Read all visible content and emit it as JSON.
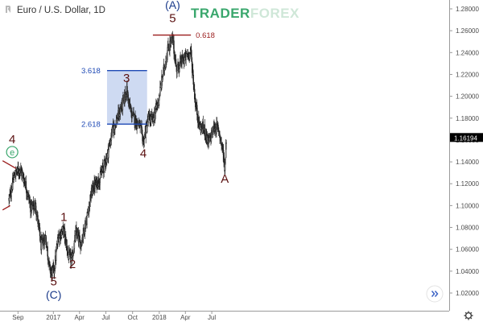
{
  "header": {
    "title": "Euro / U.S. Dollar, 1D",
    "watermark_left": "TRADER",
    "watermark_right": "FOREX"
  },
  "price_tag": "1.16194",
  "chart_data": {
    "type": "candlestick",
    "title": "Euro / U.S. Dollar, 1D",
    "y_ticks": [
      "1.28000",
      "1.26000",
      "1.24000",
      "1.22000",
      "1.20000",
      "1.18000",
      "1.16000",
      "1.14000",
      "1.12000",
      "1.10000",
      "1.08000",
      "1.06000",
      "1.04000",
      "1.02000"
    ],
    "x_ticks": [
      "Sep",
      "2017",
      "Apr",
      "Jul",
      "Oct",
      "2018",
      "Apr",
      "Jul"
    ],
    "ylim": [
      1.013,
      1.29
    ],
    "last_price": 1.16194,
    "path": [
      [
        "2016-08-01",
        1.105
      ],
      [
        "2016-08-20",
        1.128
      ],
      [
        "2016-09-08",
        1.134
      ],
      [
        "2016-09-25",
        1.122
      ],
      [
        "2016-10-15",
        1.098
      ],
      [
        "2016-11-01",
        1.1
      ],
      [
        "2016-11-20",
        1.063
      ],
      [
        "2016-12-05",
        1.072
      ],
      [
        "2016-12-20",
        1.04
      ],
      [
        "2017-01-03",
        1.04
      ],
      [
        "2017-01-18",
        1.072
      ],
      [
        "2017-02-05",
        1.078
      ],
      [
        "2017-02-22",
        1.054
      ],
      [
        "2017-03-05",
        1.05
      ],
      [
        "2017-03-20",
        1.075
      ],
      [
        "2017-04-05",
        1.065
      ],
      [
        "2017-04-25",
        1.087
      ],
      [
        "2017-05-15",
        1.115
      ],
      [
        "2017-06-10",
        1.125
      ],
      [
        "2017-07-05",
        1.145
      ],
      [
        "2017-07-25",
        1.17
      ],
      [
        "2017-08-10",
        1.18
      ],
      [
        "2017-09-01",
        1.196
      ],
      [
        "2017-09-10",
        1.206
      ],
      [
        "2017-09-25",
        1.185
      ],
      [
        "2017-10-10",
        1.178
      ],
      [
        "2017-10-26",
        1.173
      ],
      [
        "2017-11-07",
        1.158
      ],
      [
        "2017-11-25",
        1.18
      ],
      [
        "2017-12-10",
        1.178
      ],
      [
        "2017-12-28",
        1.195
      ],
      [
        "2018-01-15",
        1.222
      ],
      [
        "2018-02-01",
        1.245
      ],
      [
        "2018-02-16",
        1.252
      ],
      [
        "2018-03-01",
        1.225
      ],
      [
        "2018-03-20",
        1.232
      ],
      [
        "2018-04-10",
        1.238
      ],
      [
        "2018-04-20",
        1.24
      ],
      [
        "2018-05-05",
        1.195
      ],
      [
        "2018-05-20",
        1.172
      ],
      [
        "2018-06-05",
        1.17
      ],
      [
        "2018-06-20",
        1.157
      ],
      [
        "2018-07-10",
        1.172
      ],
      [
        "2018-07-25",
        1.17
      ],
      [
        "2018-08-08",
        1.15
      ],
      [
        "2018-08-15",
        1.135
      ],
      [
        "2018-08-20",
        1.162
      ]
    ],
    "box": {
      "x0": "2017-07-05",
      "x1": "2017-11-20",
      "top": 1.2235,
      "bottom": 1.1745
    },
    "fib_levels": [
      {
        "label": "3.618",
        "value": 1.2235
      },
      {
        "label": "2.618",
        "value": 1.1745
      },
      {
        "label": "0.618",
        "value": 1.256,
        "x0": "2017-12-10",
        "x1": "2018-04-20"
      }
    ],
    "trendline": {
      "x0": "2016-07-10",
      "y0": 1.141,
      "x1": "2016-08-25",
      "y1": 1.134
    },
    "trendline_lower": {
      "x0": "2016-07-10",
      "y0": 1.096,
      "x1": "2016-08-05",
      "y1": 1.1
    },
    "wave_labels": [
      {
        "text": "4",
        "x": "2016-08-12",
        "y": 1.157,
        "color": "dark"
      },
      {
        "text": "e",
        "x": "2016-08-12",
        "y": 1.146,
        "color": "green",
        "circled": true
      },
      {
        "text": "5",
        "x": "2017-01-02",
        "y": 1.027,
        "color": "dark"
      },
      {
        "text": "(C)",
        "x": "2017-01-02",
        "y": 1.015,
        "color": "blue"
      },
      {
        "text": "1",
        "x": "2017-02-06",
        "y": 1.086,
        "color": "dark"
      },
      {
        "text": "2",
        "x": "2017-03-08",
        "y": 1.043,
        "color": "dark"
      },
      {
        "text": "3",
        "x": "2017-09-10",
        "y": 1.213,
        "color": "dark"
      },
      {
        "text": "4",
        "x": "2017-11-07",
        "y": 1.144,
        "color": "dark"
      },
      {
        "text": "(A)",
        "x": "2018-02-16",
        "y": 1.28,
        "color": "blue"
      },
      {
        "text": "5",
        "x": "2018-02-16",
        "y": 1.268,
        "color": "dark"
      },
      {
        "text": "A",
        "x": "2018-08-15",
        "y": 1.121,
        "color": "dark"
      }
    ]
  }
}
